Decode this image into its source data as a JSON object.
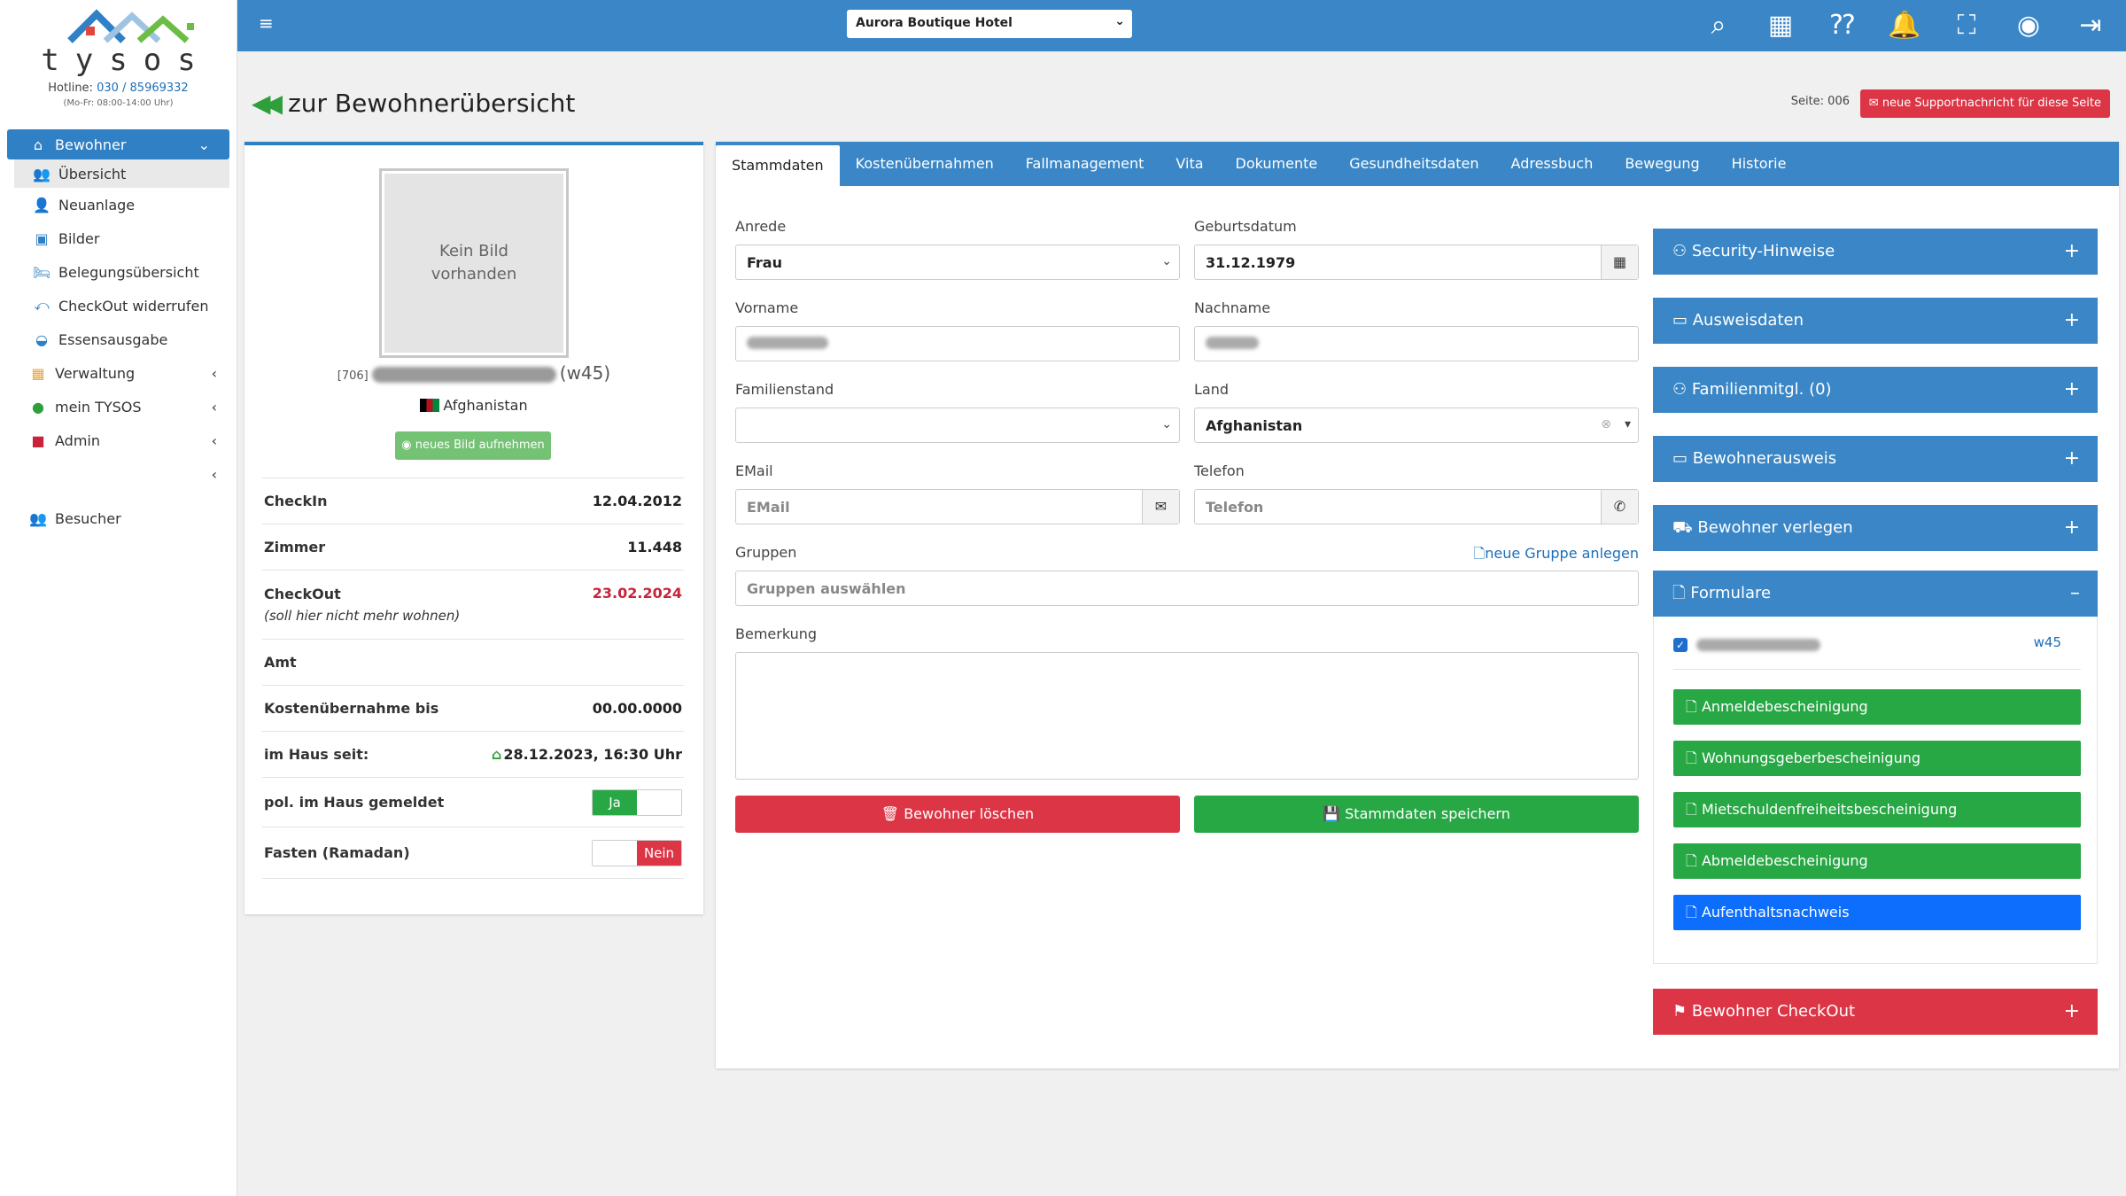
{
  "brand": {
    "logo_text": "tysos",
    "hotline_label": "Hotline:",
    "hotline_number": "030 / 85969332",
    "hours": "(Mo-Fr: 08:00-14:00 Uhr)"
  },
  "sidebar": {
    "group_bewohner": "Bewohner",
    "items": [
      {
        "label": "Übersicht"
      },
      {
        "label": "Neuanlage"
      },
      {
        "label": "Bilder"
      },
      {
        "label": "Belegungsübersicht"
      },
      {
        "label": "CheckOut widerrufen"
      },
      {
        "label": "Essensausgabe"
      }
    ],
    "verwaltung": "Verwaltung",
    "mein_tysos": "mein TYSOS",
    "admin": "Admin",
    "besucher": "Besucher"
  },
  "topbar": {
    "hotel": "Aurora Boutique Hotel"
  },
  "header": {
    "back_label": "zur Bewohnerübersicht",
    "seite": "Seite: 006",
    "support": "neue Supportnachricht für diese Seite"
  },
  "profile": {
    "no_image": "Kein Bild vorhanden",
    "id": "[706]",
    "suffix": "(w45)",
    "country": "Afghanistan",
    "photo_button": "neues Bild aufnehmen",
    "rows": {
      "checkin_label": "CheckIn",
      "checkin": "12.04.2012",
      "zimmer_label": "Zimmer",
      "zimmer": "11.448",
      "checkout_label": "CheckOut",
      "checkout_note": "(soll hier nicht mehr wohnen)",
      "checkout": "23.02.2024",
      "amt_label": "Amt",
      "kosten_label": "Kostenübernahme bis",
      "kosten": "00.00.0000",
      "imhaus_label": "im Haus seit:",
      "imhaus": "28.12.2023, 16:30 Uhr",
      "pol_label": "pol. im Haus gemeldet",
      "pol_value": "Ja",
      "fasten_label": "Fasten (Ramadan)",
      "fasten_value": "Nein"
    }
  },
  "tabs": [
    "Stammdaten",
    "Kostenübernahmen",
    "Fallmanagement",
    "Vita",
    "Dokumente",
    "Gesundheitsdaten",
    "Adressbuch",
    "Bewegung",
    "Historie"
  ],
  "form": {
    "anrede_label": "Anrede",
    "anrede": "Frau",
    "geburtsdatum_label": "Geburtsdatum",
    "geburtsdatum": "31.12.1979",
    "vorname_label": "Vorname",
    "nachname_label": "Nachname",
    "familienstand_label": "Familienstand",
    "land_label": "Land",
    "land": "Afghanistan",
    "email_label": "EMail",
    "email_placeholder": "EMail",
    "telefon_label": "Telefon",
    "telefon_placeholder": "Telefon",
    "gruppen_label": "Gruppen",
    "new_group": "neue Gruppe anlegen",
    "gruppen_placeholder": "Gruppen auswählen",
    "bemerkung_label": "Bemerkung",
    "delete_button": "Bewohner löschen",
    "save_button": "Stammdaten speichern"
  },
  "accordion": {
    "security": "Security-Hinweise",
    "ausweis": "Ausweisdaten",
    "familie": "Familienmitgl. (0)",
    "bewohnerausweis": "Bewohnerausweis",
    "verlegen": "Bewohner verlegen",
    "formulare": "Formulare",
    "checkout": "Bewohner CheckOut",
    "w45": "w45",
    "forms": [
      {
        "label": "Anmeldebescheinigung"
      },
      {
        "label": "Wohnungsgeberbescheinigung"
      },
      {
        "label": "Mietschuldenfreiheitsbescheinigung"
      },
      {
        "label": "Abmeldebescheinigung"
      },
      {
        "label": "Aufenthaltsnachweis"
      }
    ]
  },
  "colors": {
    "primary": "#3a86c6",
    "success": "#28a745",
    "danger": "#dc3545",
    "info": "#0d6efd"
  }
}
